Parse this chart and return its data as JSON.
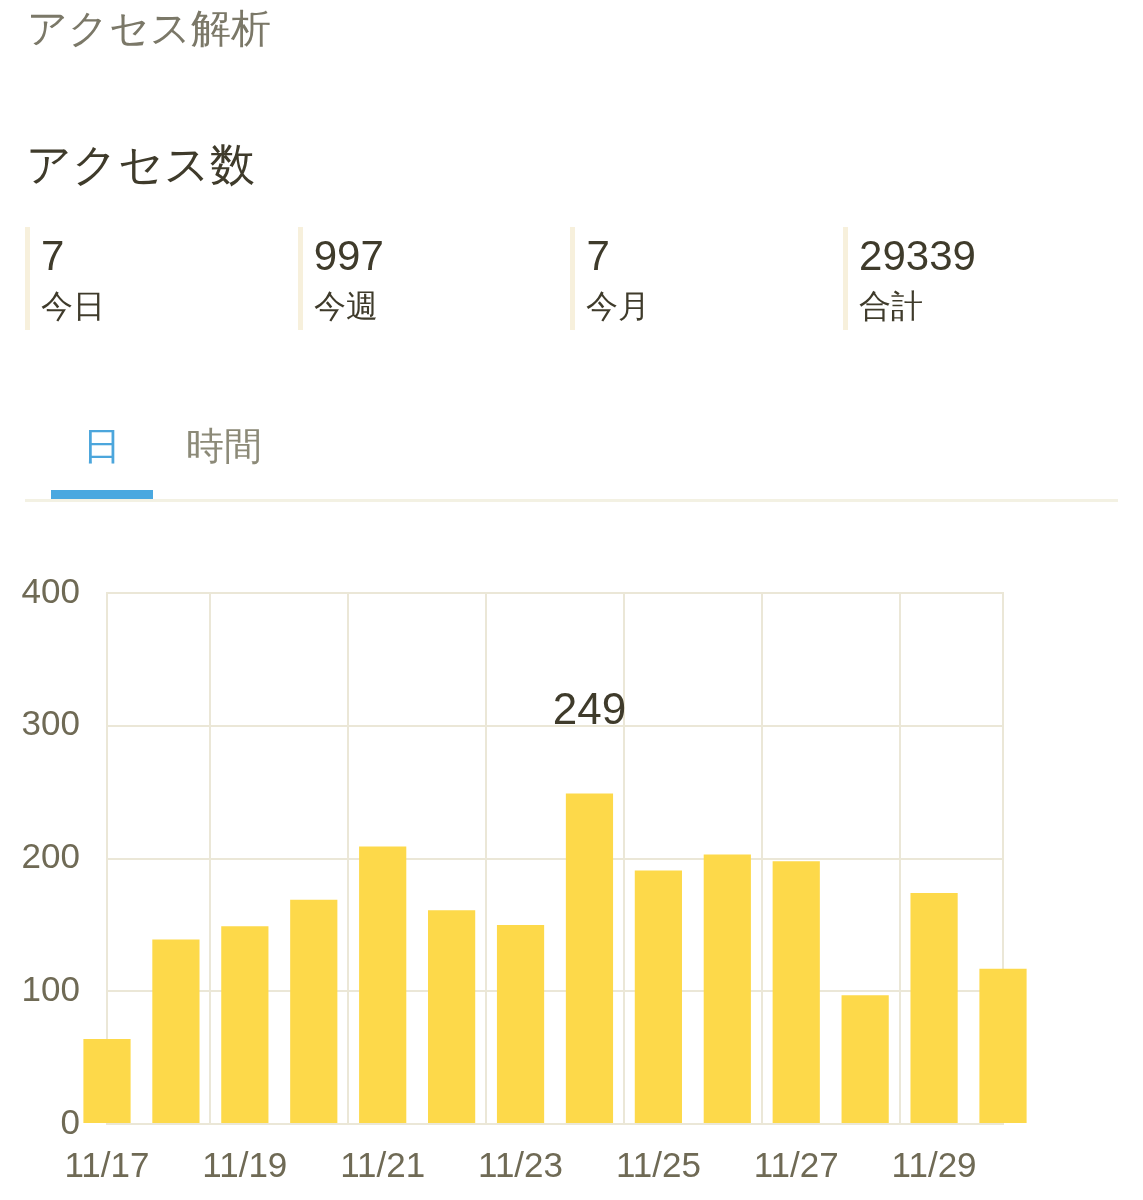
{
  "chart_data": [
    {
      "type": "other",
      "title": "アクセス解析",
      "subtitle": "アクセス数",
      "categories": [
        "今日",
        "今週",
        "今月",
        "合計"
      ],
      "values": [
        7,
        997,
        7,
        29339
      ],
      "data_labels": true
    },
    {
      "type": "bar",
      "categories": [
        "11/17",
        null,
        "11/19",
        null,
        "11/21",
        null,
        "11/23",
        null,
        "11/25",
        null,
        "11/27",
        null,
        "11/29",
        null
      ],
      "values": [
        64,
        139,
        149,
        169,
        209,
        161,
        150,
        249,
        191,
        203,
        198,
        97,
        174,
        117
      ],
      "color": "#fdd94a",
      "value_labels": [
        null,
        null,
        null,
        null,
        null,
        null,
        null,
        "249",
        null,
        null,
        null,
        null,
        null,
        null
      ],
      "ylim": [
        0,
        400
      ],
      "yticks": [
        0,
        100,
        200,
        300,
        400
      ],
      "grid": true,
      "legend": false,
      "annotations": [
        "日",
        "時間"
      ]
    }
  ]
}
